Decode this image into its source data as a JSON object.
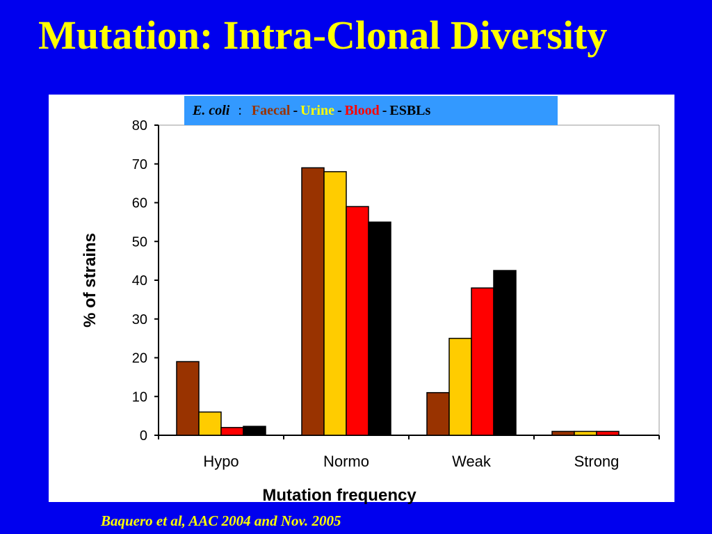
{
  "slide": {
    "title": "Mutation: Intra-Clonal Diversity",
    "citation": "Baquero et al, AAC 2004 and Nov. 2005",
    "background_color": "#0000ee",
    "title_color": "#ffff00"
  },
  "legend": {
    "organism": "E. coli",
    "colon": ":",
    "separator": "-",
    "items": [
      {
        "label": "Faecal",
        "color": "#993300"
      },
      {
        "label": "Urine",
        "color": "#ffff00"
      },
      {
        "label": "Blood",
        "color": "#ff0000"
      },
      {
        "label": "ESBLs",
        "color": "#000000"
      }
    ],
    "box_color": "#3399ff"
  },
  "chart_data": {
    "type": "bar",
    "categories": [
      "Hypo",
      "Normo",
      "Weak",
      "Strong"
    ],
    "series": [
      {
        "name": "Faecal",
        "color": "#993300",
        "values": [
          19,
          69,
          11,
          1
        ]
      },
      {
        "name": "Urine",
        "color": "#ffcc00",
        "values": [
          6,
          68,
          25,
          1
        ]
      },
      {
        "name": "Blood",
        "color": "#ff0000",
        "values": [
          2,
          59,
          38,
          1
        ]
      },
      {
        "name": "ESBLs",
        "color": "#000000",
        "values": [
          2.3,
          55,
          42.5,
          0
        ]
      }
    ],
    "xlabel": "Mutation frequency",
    "ylabel": "% of strains",
    "ylim": [
      0,
      80
    ],
    "yticks": [
      0,
      10,
      20,
      30,
      40,
      50,
      60,
      70,
      80
    ],
    "grid": false,
    "legend_position": "top"
  }
}
